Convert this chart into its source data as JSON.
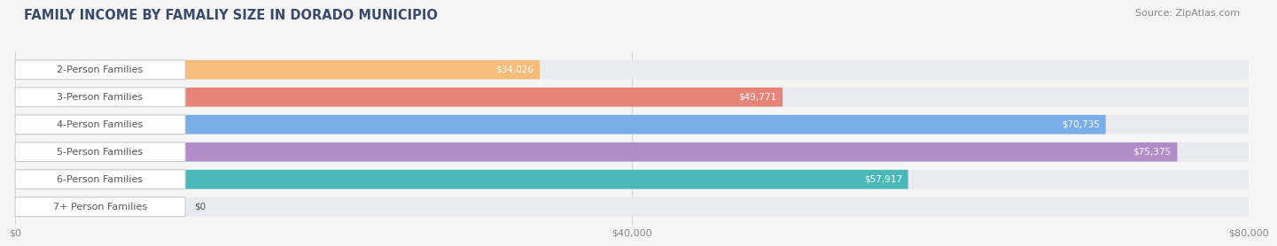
{
  "title": "FAMILY INCOME BY FAMALIY SIZE IN DORADO MUNICIPIO",
  "source": "Source: ZipAtlas.com",
  "categories": [
    "2-Person Families",
    "3-Person Families",
    "4-Person Families",
    "5-Person Families",
    "6-Person Families",
    "7+ Person Families"
  ],
  "values": [
    34026,
    49771,
    70735,
    75375,
    57917,
    0
  ],
  "bar_colors": [
    "#f5bc7a",
    "#e8837a",
    "#7aaee8",
    "#b08dc8",
    "#4ab8b8",
    "#c8d0e8"
  ],
  "bar_bg_color": "#e8eaf0",
  "label_bg_color": "#ffffff",
  "xlim": [
    0,
    80000
  ],
  "xtick_labels": [
    "$0",
    "$40,000",
    "$80,000"
  ],
  "title_fontsize": 10.5,
  "source_fontsize": 8,
  "label_fontsize": 8,
  "value_fontsize": 7.5,
  "bar_height": 0.7,
  "title_color": "#3a4a6b",
  "source_color": "#888888",
  "label_text_color": "#555555",
  "value_text_color_inside": "#ffffff",
  "value_text_color_outside": "#555555",
  "grid_color": "#d8d8d8",
  "background_color": "#f5f5f5",
  "value_inside_threshold": 15000
}
